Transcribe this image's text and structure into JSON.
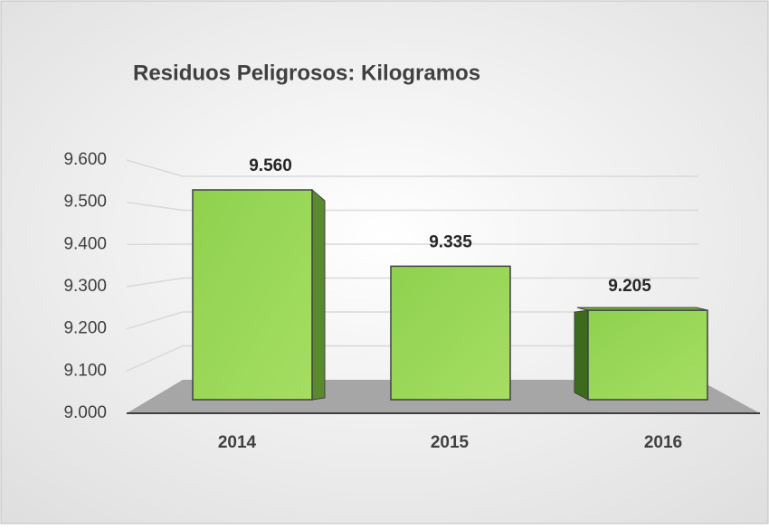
{
  "chart_data": {
    "type": "bar",
    "title": "Residuos Peligrosos: Kilogramos",
    "categories": [
      "2014",
      "2015",
      "2016"
    ],
    "values": [
      9560,
      9335,
      9205
    ],
    "value_labels": [
      "9.560",
      "9.335",
      "9.205"
    ],
    "color": "#92d050",
    "ylim": [
      9000,
      9600
    ],
    "yticks": [
      {
        "value": 9000,
        "label": "9.000"
      },
      {
        "value": 9100,
        "label": "9.100"
      },
      {
        "value": 9200,
        "label": "9.200"
      },
      {
        "value": 9300,
        "label": "9.300"
      },
      {
        "value": 9400,
        "label": "9.400"
      },
      {
        "value": 9500,
        "label": "9.500"
      },
      {
        "value": 9600,
        "label": "9.600"
      }
    ],
    "grid": true
  }
}
